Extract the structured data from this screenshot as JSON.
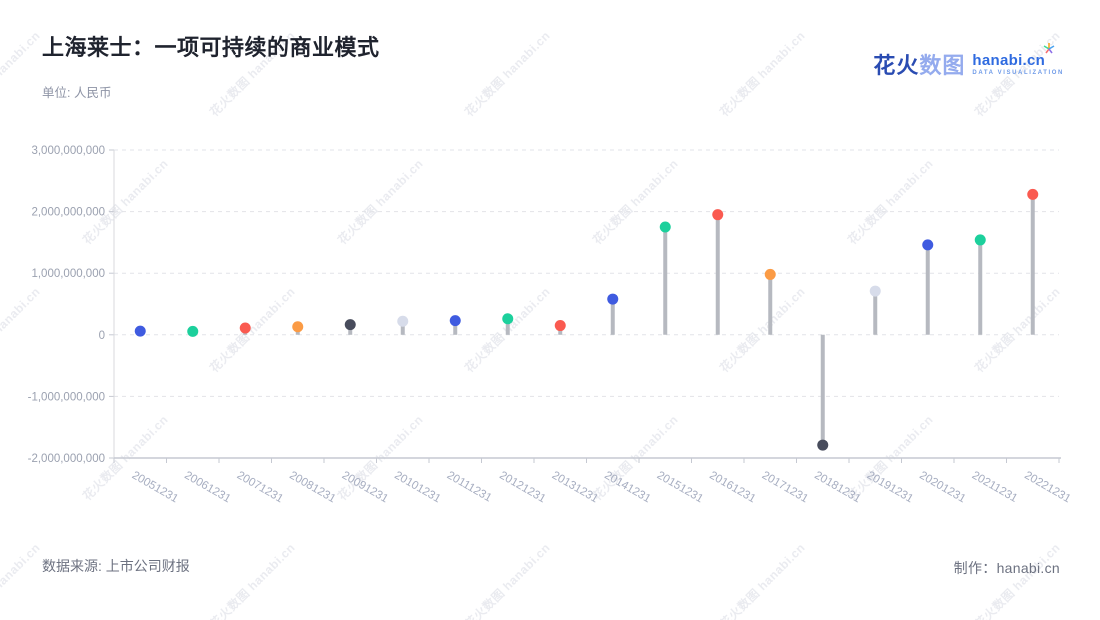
{
  "header": {
    "title": "上海莱士：一项可持续的商业模式",
    "unit_label": "单位: 人民币",
    "logo": {
      "brand_cn_bold": "花火",
      "brand_cn_light": "数图",
      "brand_en": "hanabi.cn",
      "tagline": "DATA VISUALIZATION"
    }
  },
  "footer": {
    "source": "数据来源: 上市公司财报",
    "credit": "制作：hanabi.cn"
  },
  "watermark": {
    "text": "花火数图 hanabi.cn"
  },
  "chart_data": {
    "type": "scatter",
    "style": "lollipop",
    "title": "上海莱士：一项可持续的商业模式",
    "xlabel": "",
    "ylabel": "单位: 人民币",
    "categories": [
      "20051231",
      "20061231",
      "20071231",
      "20081231",
      "20091231",
      "20101231",
      "20111231",
      "20121231",
      "20131231",
      "20141231",
      "20151231",
      "20161231",
      "20171231",
      "20181231",
      "20191231",
      "20201231",
      "20211231",
      "20221231"
    ],
    "values": [
      60000000,
      55000000,
      110000000,
      130000000,
      165000000,
      220000000,
      230000000,
      260000000,
      150000000,
      580000000,
      1750000000,
      1950000000,
      980000000,
      -1790000000,
      710000000,
      1460000000,
      1540000000,
      2280000000
    ],
    "point_colors": [
      "#3f5be0",
      "#1cd09c",
      "#fa5a50",
      "#fb9b45",
      "#484c5c",
      "#d7dcea",
      "#3f5be0",
      "#1cd09c",
      "#fa5a50",
      "#3f5be0",
      "#1cd09c",
      "#fa5a50",
      "#fb9b45",
      "#484c5c",
      "#d7dcea",
      "#3f5be0",
      "#1cd09c",
      "#fa5a50"
    ],
    "stem_color": "#b6b9c0",
    "ylim": [
      -2000000000,
      3000000000
    ],
    "y_ticks": [
      3000000000,
      2000000000,
      1000000000,
      0,
      -1000000000,
      -2000000000
    ],
    "grid": "dashed horizontal gridlines",
    "legend": "none",
    "gridline_color": "#e2e3e8",
    "axis_color": "#c6c9d2",
    "tick_label_color": "#a6adc0"
  }
}
